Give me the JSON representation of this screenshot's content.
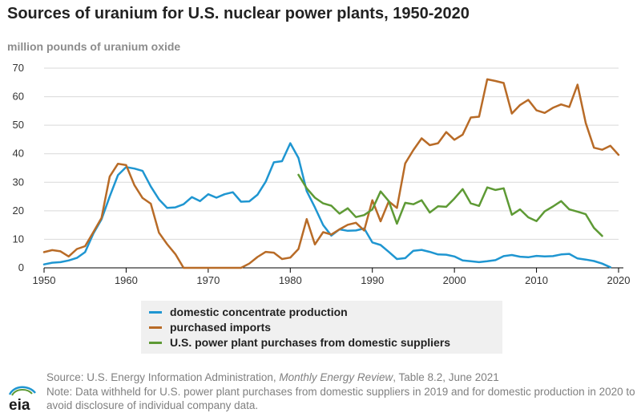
{
  "title": "Sources of uranium for U.S. nuclear power plants, 1950-2020",
  "ylabel": "million pounds of uranium oxide",
  "legend": [
    {
      "label": "domestic concentrate production",
      "color": "#1f96d1"
    },
    {
      "label": "purchased imports",
      "color": "#b86b27"
    },
    {
      "label": "U.S. power plant purchases from domestic suppliers",
      "color": "#5e9a35"
    }
  ],
  "source_pre": "Source: U.S. Energy Information Administration, ",
  "source_em": "Monthly Energy Review",
  "source_post": ", Table 8.2, June 2021",
  "note": "Note: Data withheld for U.S. power plant purchases from domestic suppliers in 2019 and for domestic production in 2020 to avoid disclosure of individual company data.",
  "logo_text": "eia",
  "chart_data": {
    "type": "line",
    "title": "Sources of uranium for U.S. nuclear power plants, 1950-2020",
    "ylabel": "million pounds of uranium oxide",
    "xlabel": "",
    "xlim": [
      1950,
      2020
    ],
    "ylim": [
      0,
      70
    ],
    "x_ticks": [
      1950,
      1960,
      1970,
      1980,
      1990,
      2000,
      2010,
      2020
    ],
    "y_ticks": [
      0,
      10,
      20,
      30,
      40,
      50,
      60,
      70
    ],
    "grid": "horizontal",
    "legend_position": "bottom",
    "series": [
      {
        "name": "domestic concentrate production",
        "color": "#1f96d1",
        "points": [
          [
            1950,
            1.2
          ],
          [
            1951,
            1.8
          ],
          [
            1952,
            2.0
          ],
          [
            1953,
            2.6
          ],
          [
            1954,
            3.5
          ],
          [
            1955,
            5.5
          ],
          [
            1956,
            12.0
          ],
          [
            1957,
            17.0
          ],
          [
            1958,
            25.0
          ],
          [
            1959,
            32.5
          ],
          [
            1960,
            35.3
          ],
          [
            1961,
            34.8
          ],
          [
            1962,
            34.0
          ],
          [
            1963,
            28.5
          ],
          [
            1964,
            24.0
          ],
          [
            1965,
            21.0
          ],
          [
            1966,
            21.2
          ],
          [
            1967,
            22.3
          ],
          [
            1968,
            24.8
          ],
          [
            1969,
            23.4
          ],
          [
            1970,
            25.8
          ],
          [
            1971,
            24.6
          ],
          [
            1972,
            25.8
          ],
          [
            1973,
            26.5
          ],
          [
            1974,
            23.2
          ],
          [
            1975,
            23.3
          ],
          [
            1976,
            25.6
          ],
          [
            1977,
            30.2
          ],
          [
            1978,
            37.0
          ],
          [
            1979,
            37.4
          ],
          [
            1980,
            43.7
          ],
          [
            1981,
            38.5
          ],
          [
            1982,
            26.9
          ],
          [
            1983,
            21.2
          ],
          [
            1984,
            15.0
          ],
          [
            1985,
            11.3
          ],
          [
            1986,
            13.5
          ],
          [
            1987,
            13.0
          ],
          [
            1988,
            13.1
          ],
          [
            1989,
            13.8
          ],
          [
            1990,
            8.9
          ],
          [
            1991,
            8.0
          ],
          [
            1992,
            5.6
          ],
          [
            1993,
            3.1
          ],
          [
            1994,
            3.4
          ],
          [
            1995,
            6.0
          ],
          [
            1996,
            6.3
          ],
          [
            1997,
            5.6
          ],
          [
            1998,
            4.7
          ],
          [
            1999,
            4.6
          ],
          [
            2000,
            4.0
          ],
          [
            2001,
            2.6
          ],
          [
            2002,
            2.3
          ],
          [
            2003,
            2.0
          ],
          [
            2004,
            2.3
          ],
          [
            2005,
            2.7
          ],
          [
            2006,
            4.1
          ],
          [
            2007,
            4.5
          ],
          [
            2008,
            3.9
          ],
          [
            2009,
            3.7
          ],
          [
            2010,
            4.2
          ],
          [
            2011,
            4.0
          ],
          [
            2012,
            4.1
          ],
          [
            2013,
            4.7
          ],
          [
            2014,
            4.9
          ],
          [
            2015,
            3.3
          ],
          [
            2016,
            2.9
          ],
          [
            2017,
            2.4
          ],
          [
            2018,
            1.5
          ],
          [
            2019,
            0.2
          ]
        ]
      },
      {
        "name": "purchased imports",
        "color": "#b86b27",
        "points": [
          [
            1950,
            5.5
          ],
          [
            1951,
            6.2
          ],
          [
            1952,
            5.8
          ],
          [
            1953,
            4.0
          ],
          [
            1954,
            6.6
          ],
          [
            1955,
            7.6
          ],
          [
            1956,
            12.5
          ],
          [
            1957,
            17.5
          ],
          [
            1958,
            32.0
          ],
          [
            1959,
            36.5
          ],
          [
            1960,
            36.0
          ],
          [
            1961,
            29.0
          ],
          [
            1962,
            24.5
          ],
          [
            1963,
            22.5
          ],
          [
            1964,
            12.3
          ],
          [
            1965,
            8.3
          ],
          [
            1966,
            4.8
          ],
          [
            1967,
            0
          ],
          [
            1968,
            0
          ],
          [
            1969,
            0
          ],
          [
            1970,
            0
          ],
          [
            1971,
            0
          ],
          [
            1972,
            0
          ],
          [
            1973,
            0
          ],
          [
            1974,
            0
          ],
          [
            1975,
            1.5
          ],
          [
            1976,
            3.8
          ],
          [
            1977,
            5.6
          ],
          [
            1978,
            5.3
          ],
          [
            1979,
            3.1
          ],
          [
            1980,
            3.6
          ],
          [
            1981,
            6.6
          ],
          [
            1982,
            17.1
          ],
          [
            1983,
            8.2
          ],
          [
            1984,
            12.5
          ],
          [
            1985,
            11.7
          ],
          [
            1986,
            13.5
          ],
          [
            1987,
            15.1
          ],
          [
            1988,
            15.8
          ],
          [
            1989,
            13.1
          ],
          [
            1990,
            23.7
          ],
          [
            1991,
            16.3
          ],
          [
            1992,
            23.3
          ],
          [
            1993,
            21.0
          ],
          [
            1994,
            36.6
          ],
          [
            1995,
            41.3
          ],
          [
            1996,
            45.4
          ],
          [
            1997,
            43.0
          ],
          [
            1998,
            43.7
          ],
          [
            1999,
            47.6
          ],
          [
            2000,
            44.9
          ],
          [
            2001,
            46.7
          ],
          [
            2002,
            52.7
          ],
          [
            2003,
            53.0
          ],
          [
            2004,
            66.1
          ],
          [
            2005,
            65.5
          ],
          [
            2006,
            64.8
          ],
          [
            2007,
            54.1
          ],
          [
            2008,
            57.1
          ],
          [
            2009,
            58.9
          ],
          [
            2010,
            55.2
          ],
          [
            2011,
            54.3
          ],
          [
            2012,
            56.1
          ],
          [
            2013,
            57.3
          ],
          [
            2014,
            56.4
          ],
          [
            2015,
            64.2
          ],
          [
            2016,
            50.8
          ],
          [
            2017,
            42.1
          ],
          [
            2018,
            41.4
          ],
          [
            2019,
            42.8
          ],
          [
            2020,
            39.6
          ]
        ]
      },
      {
        "name": "U.S. power plant purchases from domestic suppliers",
        "color": "#5e9a35",
        "points": [
          [
            1981,
            32.6
          ],
          [
            1982,
            27.9
          ],
          [
            1983,
            24.6
          ],
          [
            1984,
            22.6
          ],
          [
            1985,
            21.8
          ],
          [
            1986,
            19.0
          ],
          [
            1987,
            20.9
          ],
          [
            1988,
            17.8
          ],
          [
            1989,
            18.5
          ],
          [
            1990,
            20.5
          ],
          [
            1991,
            26.8
          ],
          [
            1992,
            23.4
          ],
          [
            1993,
            15.5
          ],
          [
            1994,
            22.8
          ],
          [
            1995,
            22.3
          ],
          [
            1996,
            23.7
          ],
          [
            1997,
            19.4
          ],
          [
            1998,
            21.6
          ],
          [
            1999,
            21.4
          ],
          [
            2000,
            24.3
          ],
          [
            2001,
            27.6
          ],
          [
            2002,
            22.6
          ],
          [
            2003,
            21.7
          ],
          [
            2004,
            28.2
          ],
          [
            2005,
            27.3
          ],
          [
            2006,
            27.9
          ],
          [
            2007,
            18.6
          ],
          [
            2008,
            20.5
          ],
          [
            2009,
            17.7
          ],
          [
            2010,
            16.4
          ],
          [
            2011,
            19.8
          ],
          [
            2012,
            21.5
          ],
          [
            2013,
            23.4
          ],
          [
            2014,
            20.5
          ],
          [
            2015,
            19.7
          ],
          [
            2016,
            18.8
          ],
          [
            2017,
            14.0
          ],
          [
            2018,
            11.2
          ]
        ]
      }
    ]
  }
}
